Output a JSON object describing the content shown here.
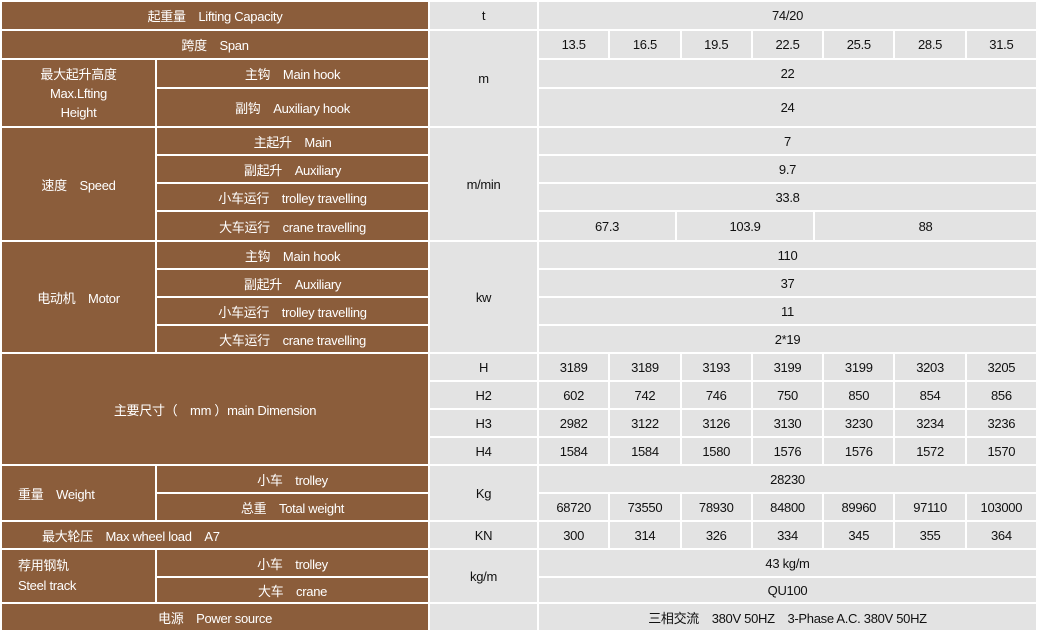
{
  "labels": {
    "lifting_capacity": "起重量　Lifting Capacity",
    "span": "跨度　Span",
    "max_lifting_height": [
      "最大起升高度",
      "Max.Lfting",
      "Height"
    ],
    "main_hook": "主钩　Main hook",
    "auxiliary_hook": "副钩　Auxiliary hook",
    "speed": "速度　Speed",
    "main": "主起升　Main",
    "auxiliary": "副起升　Auxiliary",
    "trolley_travelling": "小车运行　trolley travelling",
    "crane_travelling": "大车运行　crane travelling",
    "motor": "电动机　Motor",
    "motor_main_hook": "主钩　Main hook",
    "motor_auxiliary": "副起升　Auxiliary",
    "main_dimension": "主要尺寸（　mm ）main Dimension",
    "weight": "重量　Weight",
    "trolley": "小车　trolley",
    "total_weight": "总重　Total weight",
    "max_wheel_load": "最大轮压　Max wheel load　A7",
    "steel_track": [
      "荐用钢轨",
      "Steel track"
    ],
    "crane": "大车　crane",
    "power_source": "电源　Power source"
  },
  "units": {
    "t": "t",
    "m": "m",
    "speed": "m/min",
    "motor": "kw",
    "H": "H",
    "H2": "H2",
    "H3": "H3",
    "H4": "H4",
    "weight": "Kg",
    "wheel": "KN",
    "track": "kg/m"
  },
  "values": {
    "lifting_capacity": "74/20",
    "span": [
      "13.5",
      "16.5",
      "19.5",
      "22.5",
      "25.5",
      "28.5",
      "31.5"
    ],
    "main_hook_height": "22",
    "aux_hook_height": "24",
    "speed_main": "7",
    "speed_aux": "9.7",
    "speed_trolley": "33.8",
    "speed_crane": [
      "67.3",
      "103.9",
      "88"
    ],
    "motor_main": "110",
    "motor_aux": "37",
    "motor_trolley": "11",
    "motor_crane": "2*19",
    "H": [
      "3189",
      "3189",
      "3193",
      "3199",
      "3199",
      "3203",
      "3205"
    ],
    "H2": [
      "602",
      "742",
      "746",
      "750",
      "850",
      "854",
      "856"
    ],
    "H3": [
      "2982",
      "3122",
      "3126",
      "3130",
      "3230",
      "3234",
      "3236"
    ],
    "H4": [
      "1584",
      "1584",
      "1580",
      "1576",
      "1576",
      "1572",
      "1570"
    ],
    "trolley_weight": "28230",
    "total_weight": [
      "68720",
      "73550",
      "78930",
      "84800",
      "89960",
      "97110",
      "103000"
    ],
    "max_wheel_load": [
      "300",
      "314",
      "326",
      "334",
      "345",
      "355",
      "364"
    ],
    "track_trolley": "43 kg/m",
    "track_crane": "QU100",
    "power_source": "三相交流　380V 50HZ　3-Phase A.C. 380V 50HZ"
  },
  "colors": {
    "header_bg": "#8b5d3b",
    "cell_bg": "#e3e3e3",
    "border": "#ffffff"
  }
}
